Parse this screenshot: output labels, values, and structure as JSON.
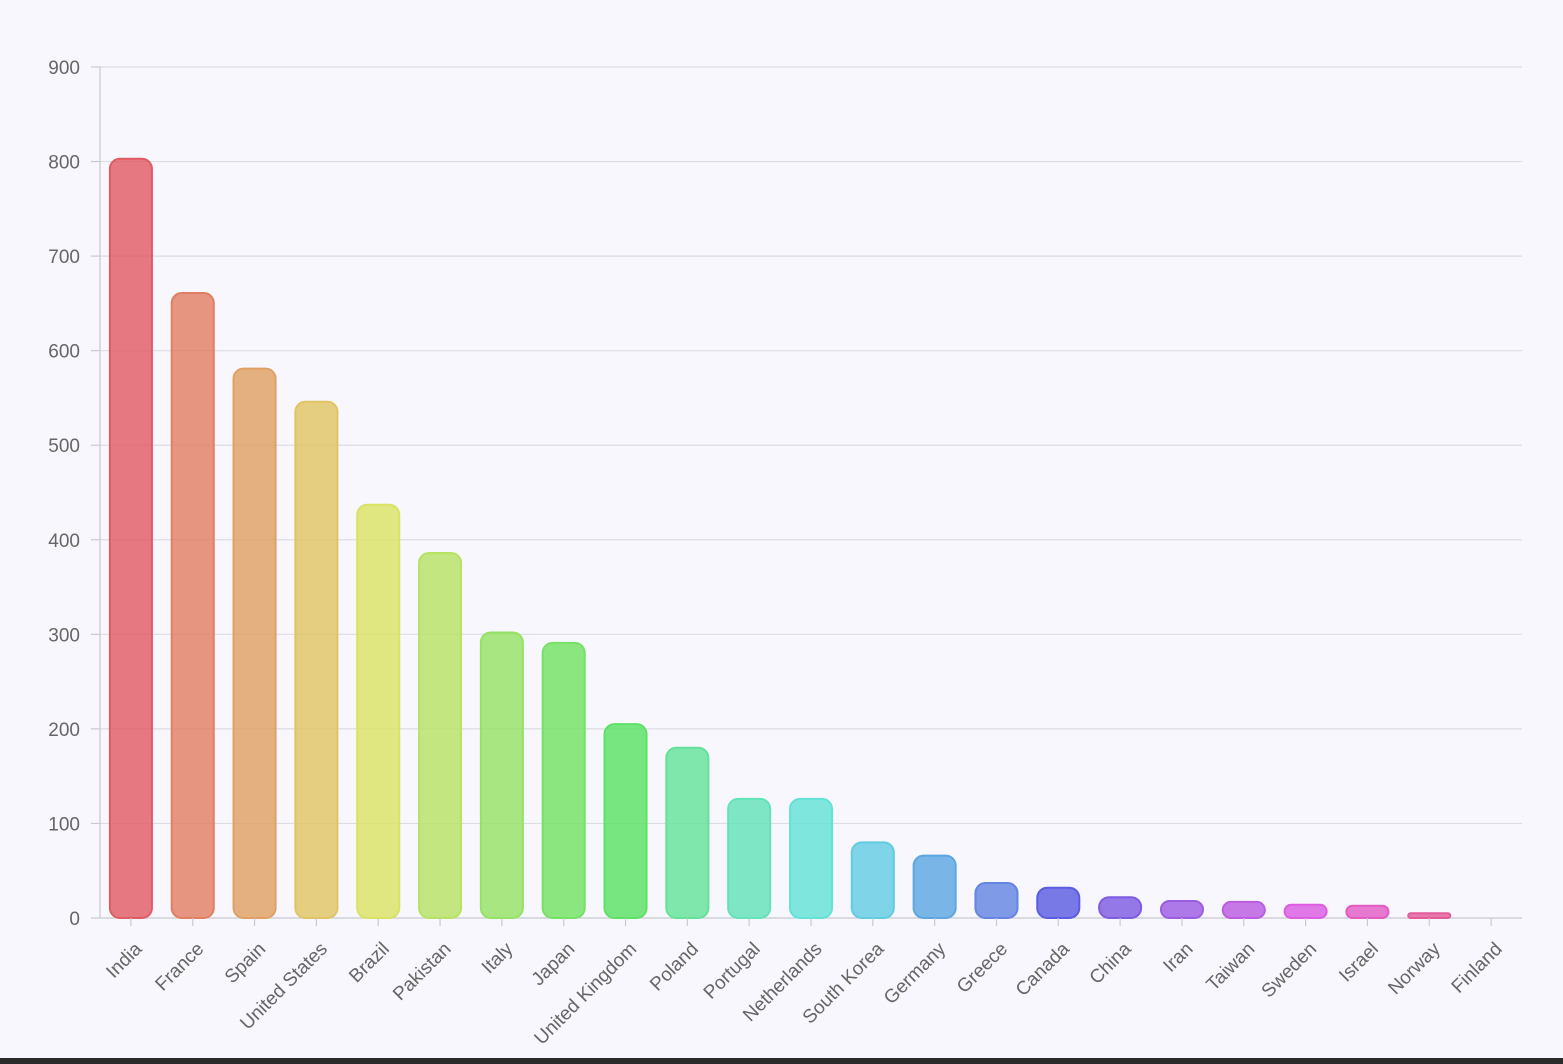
{
  "chart_data": {
    "type": "bar",
    "title": "",
    "xlabel": "",
    "ylabel": "",
    "ylim": [
      0,
      900
    ],
    "yticks": [
      0,
      100,
      200,
      300,
      400,
      500,
      600,
      700,
      800,
      900
    ],
    "grid": true,
    "legend": "none",
    "categories": [
      "India",
      "France",
      "Spain",
      "United States",
      "Brazil",
      "Pakistan",
      "Italy",
      "Japan",
      "United Kingdom",
      "Poland",
      "Portugal",
      "Netherlands",
      "South Korea",
      "Germany",
      "Greece",
      "Canada",
      "China",
      "Iran",
      "Taiwan",
      "Sweden",
      "Israel",
      "Norway",
      "Finland"
    ],
    "values": [
      803,
      661,
      581,
      546,
      437,
      386,
      302,
      291,
      205,
      180,
      126,
      126,
      80,
      66,
      37,
      32,
      22,
      18,
      17,
      14,
      13,
      5,
      0
    ],
    "colors": [
      "#e05c64",
      "#e07f64",
      "#e0a064",
      "#e0c464",
      "#dae264",
      "#b8e264",
      "#95e264",
      "#74e264",
      "#5ce264",
      "#64e29a",
      "#64e2b8",
      "#64e2d6",
      "#64cce2",
      "#5ea6e2",
      "#6485e2",
      "#5c5ce2",
      "#7e5ce2",
      "#9c5ce2",
      "#bb5ce2",
      "#dc5ce2",
      "#e25cc4",
      "#e25c9a",
      "#e25c80"
    ]
  }
}
